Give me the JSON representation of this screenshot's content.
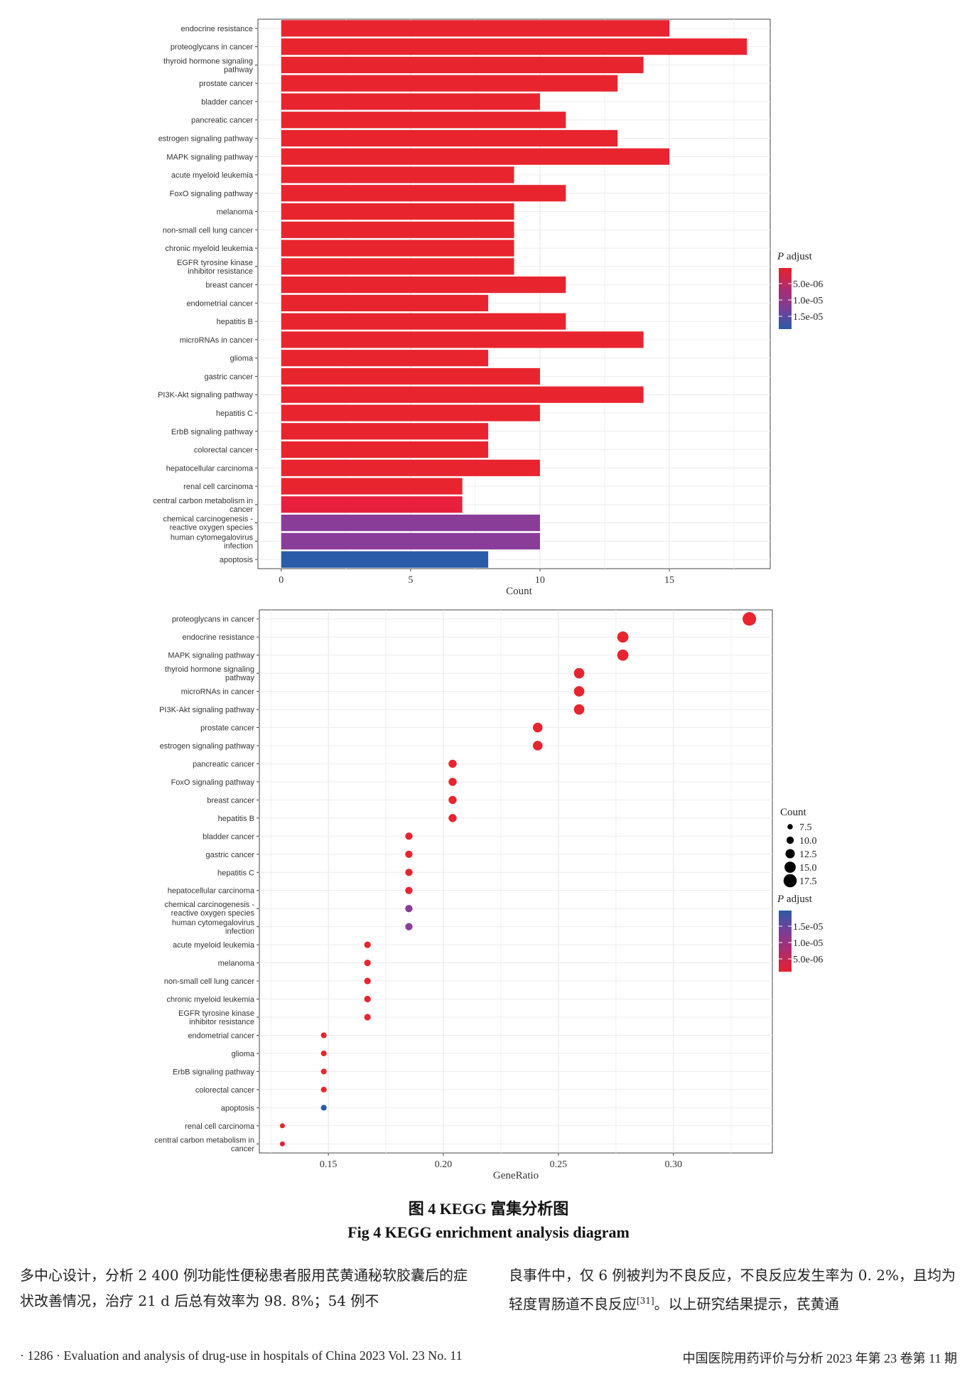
{
  "chart_data": [
    {
      "type": "bar",
      "orientation": "horizontal",
      "categories": [
        "endocrine resistance",
        "proteoglycans in cancer",
        "thyroid hormone signaling pathway",
        "prostate cancer",
        "bladder cancer",
        "pancreatic cancer",
        "estrogen signaling pathway",
        "MAPK signaling pathway",
        "acute myeloid leukemia",
        "FoxO signaling pathway",
        "melanoma",
        "non-small cell lung cancer",
        "chronic myeloid leukemia",
        "EGFR tyrosine kinase inhibitor resistance",
        "breast cancer",
        "endometrial cancer",
        "hepatitis B",
        "microRNAs in cancer",
        "glioma",
        "gastric cancer",
        "PI3K-Akt signaling pathway",
        "hepatitis C",
        "ErbB signaling pathway",
        "colorectal cancer",
        "hepatocellular carcinoma",
        "renal cell carcinoma",
        "central carbon metabolism in cancer",
        "chemical carcinogenesis - reactive oxygen species",
        "human cytomegalovirus infection",
        "apoptosis"
      ],
      "category_lines": [
        [
          "endocrine resistance"
        ],
        [
          "proteoglycans in cancer"
        ],
        [
          "thyroid hormone signaling",
          "pathway"
        ],
        [
          "prostate cancer"
        ],
        [
          "bladder cancer"
        ],
        [
          "pancreatic cancer"
        ],
        [
          "estrogen signaling pathway"
        ],
        [
          "MAPK signaling pathway"
        ],
        [
          "acute myeloid leukemia"
        ],
        [
          "FoxO signaling pathway"
        ],
        [
          "melanoma"
        ],
        [
          "non-small cell lung cancer"
        ],
        [
          "chronic myeloid leukemia"
        ],
        [
          "EGFR tyrosine kinase",
          "inhibitor resistance"
        ],
        [
          "breast cancer"
        ],
        [
          "endometrial cancer"
        ],
        [
          "hepatitis B"
        ],
        [
          "microRNAs in cancer"
        ],
        [
          "glioma"
        ],
        [
          "gastric cancer"
        ],
        [
          "PI3K-Akt signaling pathway"
        ],
        [
          "hepatitis C"
        ],
        [
          "ErbB signaling pathway"
        ],
        [
          "colorectal cancer"
        ],
        [
          "hepatocellular carcinoma"
        ],
        [
          "renal cell carcinoma"
        ],
        [
          "central carbon metabolism in",
          "cancer"
        ],
        [
          "chemical carcinogenesis -",
          "reactive oxygen species"
        ],
        [
          "human cytomegalovirus",
          "infection"
        ],
        [
          "apoptosis"
        ]
      ],
      "values": [
        15,
        18,
        14,
        13,
        10,
        11,
        13,
        15,
        9,
        11,
        9,
        9,
        9,
        9,
        11,
        8,
        11,
        14,
        8,
        10,
        14,
        10,
        8,
        8,
        10,
        7,
        7,
        10,
        10,
        8
      ],
      "colors": [
        "#e8252f",
        "#e8252f",
        "#e8252f",
        "#e8252f",
        "#e8252f",
        "#e8252f",
        "#e8252f",
        "#e8252f",
        "#e8252f",
        "#e8252f",
        "#e8252f",
        "#e8252f",
        "#e8252f",
        "#e8252f",
        "#e8252f",
        "#e8252f",
        "#e8252f",
        "#e8252f",
        "#e8252f",
        "#e8252f",
        "#e8252f",
        "#e8252f",
        "#e8252f",
        "#e8252f",
        "#e8252f",
        "#e8252f",
        "#e8203e",
        "#8a3c99",
        "#8a3c99",
        "#2a5ba8"
      ],
      "xlabel": "Count",
      "xlim": [
        -0.9,
        18.9
      ],
      "xticks": [
        0,
        5,
        10,
        15
      ],
      "xtick_labels": [
        "0",
        "5",
        "10",
        "15"
      ],
      "grid": true,
      "legend": {
        "title_italic": "P",
        "title_rest": " adjust",
        "labels": [
          "5.0e-06",
          "1.0e-05",
          "1.5e-05"
        ],
        "gradient": [
          "#e8202e",
          "#b02a6e",
          "#7a3d99",
          "#2a5ba8"
        ],
        "placement": "right"
      }
    },
    {
      "type": "scatter",
      "categories": [
        "proteoglycans in cancer",
        "endocrine resistance",
        "MAPK signaling pathway",
        "thyroid hormone signaling pathway",
        "microRNAs in cancer",
        "PI3K-Akt signaling pathway",
        "prostate cancer",
        "estrogen signaling pathway",
        "pancreatic cancer",
        "FoxO signaling pathway",
        "breast cancer",
        "hepatitis B",
        "bladder cancer",
        "gastric cancer",
        "hepatitis C",
        "hepatocellular carcinoma",
        "chemical carcinogenesis - reactive oxygen species",
        "human cytomegalovirus infection",
        "acute myeloid leukemia",
        "melanoma",
        "non-small cell lung cancer",
        "chronic myeloid leukemia",
        "EGFR tyrosine kinase inhibitor resistance",
        "endometrial cancer",
        "glioma",
        "ErbB signaling pathway",
        "colorectal cancer",
        "apoptosis",
        "renal cell carcinoma",
        "central carbon metabolism in cancer"
      ],
      "category_lines": [
        [
          "proteoglycans in cancer"
        ],
        [
          "endocrine resistance"
        ],
        [
          "MAPK signaling pathway"
        ],
        [
          "thyroid hormone signaling",
          "pathway"
        ],
        [
          "microRNAs in cancer"
        ],
        [
          "PI3K-Akt signaling pathway"
        ],
        [
          "prostate cancer"
        ],
        [
          "estrogen signaling pathway"
        ],
        [
          "pancreatic cancer"
        ],
        [
          "FoxO signaling pathway"
        ],
        [
          "breast cancer"
        ],
        [
          "hepatitis B"
        ],
        [
          "bladder cancer"
        ],
        [
          "gastric cancer"
        ],
        [
          "hepatitis C"
        ],
        [
          "hepatocellular carcinoma"
        ],
        [
          "chemical carcinogenesis -",
          "reactive oxygen species"
        ],
        [
          "human cytomegalovirus",
          "infection"
        ],
        [
          "acute myeloid leukemia"
        ],
        [
          "melanoma"
        ],
        [
          "non-small cell lung cancer"
        ],
        [
          "chronic myeloid leukemia"
        ],
        [
          "EGFR tyrosine kinase",
          "inhibitor resistance"
        ],
        [
          "endometrial cancer"
        ],
        [
          "glioma"
        ],
        [
          "ErbB signaling pathway"
        ],
        [
          "colorectal cancer"
        ],
        [
          "apoptosis"
        ],
        [
          "renal cell carcinoma"
        ],
        [
          "central carbon metabolism in",
          "cancer"
        ]
      ],
      "x": [
        0.333,
        0.278,
        0.278,
        0.259,
        0.259,
        0.259,
        0.241,
        0.241,
        0.204,
        0.204,
        0.204,
        0.204,
        0.185,
        0.185,
        0.185,
        0.185,
        0.185,
        0.185,
        0.167,
        0.167,
        0.167,
        0.167,
        0.167,
        0.148,
        0.148,
        0.148,
        0.148,
        0.148,
        0.13,
        0.13
      ],
      "count": [
        18,
        15,
        15,
        14,
        14,
        14,
        13,
        13,
        11,
        11,
        11,
        11,
        10,
        10,
        10,
        10,
        10,
        10,
        9,
        9,
        9,
        9,
        9,
        8,
        8,
        8,
        8,
        8,
        7,
        7
      ],
      "colors": [
        "#e8252f",
        "#e8252f",
        "#e8252f",
        "#e8252f",
        "#e8252f",
        "#e8252f",
        "#e8252f",
        "#e8252f",
        "#e8252f",
        "#e8252f",
        "#e8252f",
        "#e8252f",
        "#e8252f",
        "#e8252f",
        "#e8252f",
        "#e8252f",
        "#8a3c99",
        "#8a3c99",
        "#e8252f",
        "#e8252f",
        "#e8252f",
        "#e8252f",
        "#e8252f",
        "#e8252f",
        "#e8252f",
        "#e8252f",
        "#e8252f",
        "#2a5ba8",
        "#e8252f",
        "#e8203e"
      ],
      "xlabel": "GeneRatio",
      "xlim": [
        0.12,
        0.343
      ],
      "xticks": [
        0.15,
        0.2,
        0.25,
        0.3
      ],
      "xtick_labels": [
        "0.15",
        "0.20",
        "0.25",
        "0.30"
      ],
      "grid": true,
      "size_legend": {
        "title": "Count",
        "labels": [
          "7.5",
          "10.0",
          "12.5",
          "15.0",
          "17.5"
        ],
        "values": [
          7.5,
          10,
          12.5,
          15,
          17.5
        ],
        "placement": "right"
      },
      "legend": {
        "title_italic": "P",
        "title_rest": " adjust",
        "labels": [
          "1.5e-05",
          "1.0e-05",
          "5.0e-06"
        ],
        "gradient": [
          "#2a5ba8",
          "#7a3d99",
          "#b02a6e",
          "#e8202e"
        ],
        "placement": "right"
      }
    }
  ],
  "caption": {
    "cn": "图 4    KEGG 富集分析图",
    "en": "Fig 4    KEGG enrichment analysis diagram"
  },
  "body": {
    "left": "多中心设计，分析 2 400 例功能性便秘患者服用芪黄通秘软胶囊后的症状改善情况，治疗 21 d 后总有效率为 98. 8%；54 例不",
    "right_before_ref": "良事件中，仅 6 例被判为不良反应，不良反应发生率为 0. 2%，且均为轻度胃肠道不良反应",
    "ref": "[31]",
    "right_after_ref": "。以上研究结果提示，芪黄通"
  },
  "footer": {
    "left": "· 1286 ·  Evaluation and analysis of drug-use in hospitals of China 2023 Vol. 23 No. 11",
    "right": "中国医院用药评价与分析    2023 年第 23 卷第 11 期"
  }
}
